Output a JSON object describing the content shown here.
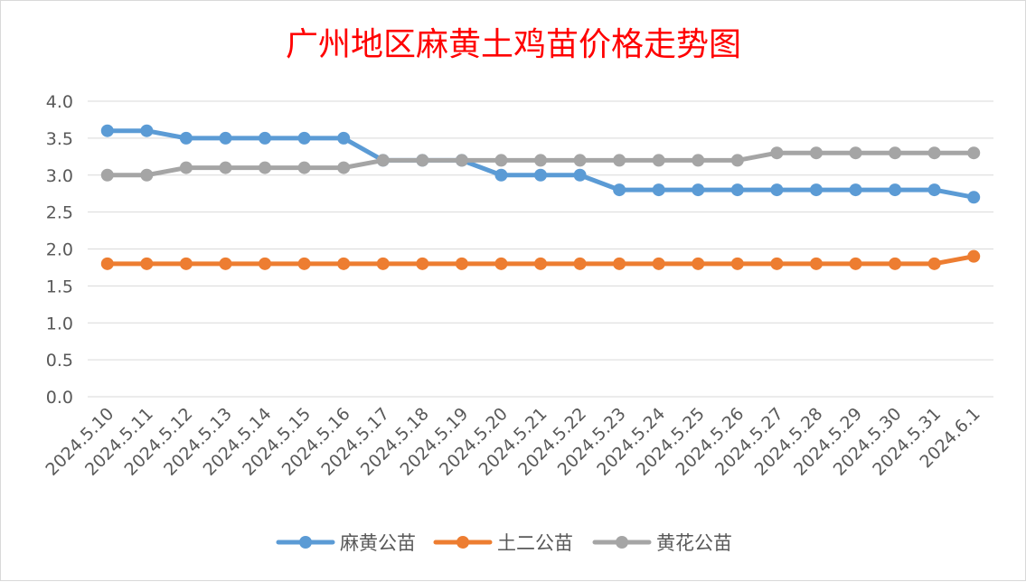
{
  "chart_data": {
    "type": "line",
    "title": "广州地区麻黄土鸡苗价格走势图",
    "xlabel": "",
    "ylabel": "",
    "categories": [
      "2024.5.10",
      "2024.5.11",
      "2024.5.12",
      "2024.5.13",
      "2024.5.14",
      "2024.5.15",
      "2024.5.16",
      "2024.5.17",
      "2024.5.18",
      "2024.5.19",
      "2024.5.20",
      "2024.5.21",
      "2024.5.22",
      "2024.5.23",
      "2024.5.24",
      "2024.5.25",
      "2024.5.26",
      "2024.5.27",
      "2024.5.28",
      "2024.5.29",
      "2024.5.30",
      "2024.5.31",
      "2024.6.1"
    ],
    "ylim": [
      0,
      4
    ],
    "yticks": [
      "0.0",
      "0.5",
      "1.0",
      "1.5",
      "2.0",
      "2.5",
      "3.0",
      "3.5",
      "4.0"
    ],
    "grid": true,
    "legend_position": "bottom",
    "series": [
      {
        "name": "麻黄公苗",
        "color": "#5b9bd5",
        "values": [
          3.6,
          3.6,
          3.5,
          3.5,
          3.5,
          3.5,
          3.5,
          3.2,
          3.2,
          3.2,
          3.0,
          3.0,
          3.0,
          2.8,
          2.8,
          2.8,
          2.8,
          2.8,
          2.8,
          2.8,
          2.8,
          2.8,
          2.7
        ]
      },
      {
        "name": "土二公苗",
        "color": "#ed7d31",
        "values": [
          1.8,
          1.8,
          1.8,
          1.8,
          1.8,
          1.8,
          1.8,
          1.8,
          1.8,
          1.8,
          1.8,
          1.8,
          1.8,
          1.8,
          1.8,
          1.8,
          1.8,
          1.8,
          1.8,
          1.8,
          1.8,
          1.8,
          1.9
        ]
      },
      {
        "name": "黄花公苗",
        "color": "#a5a5a5",
        "values": [
          3.0,
          3.0,
          3.1,
          3.1,
          3.1,
          3.1,
          3.1,
          3.2,
          3.2,
          3.2,
          3.2,
          3.2,
          3.2,
          3.2,
          3.2,
          3.2,
          3.2,
          3.3,
          3.3,
          3.3,
          3.3,
          3.3,
          3.3
        ]
      }
    ],
    "title_color": "#ff0000"
  }
}
